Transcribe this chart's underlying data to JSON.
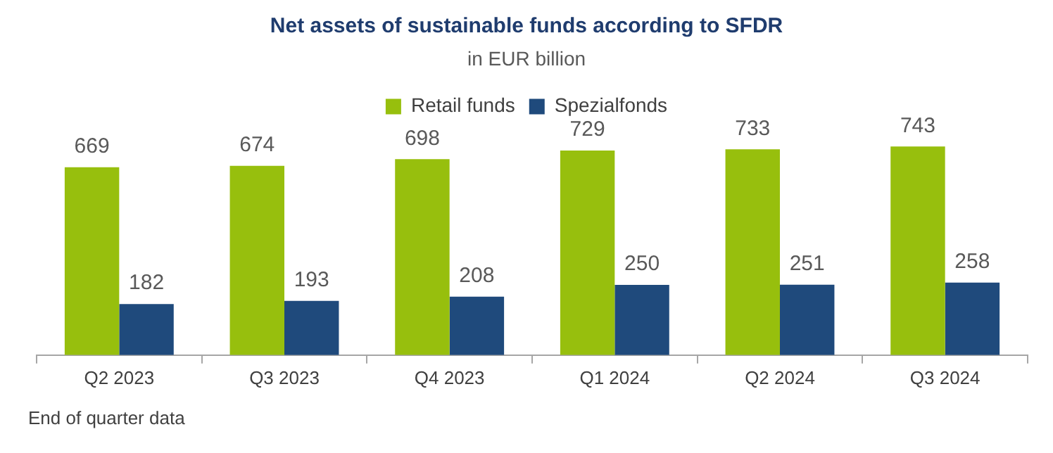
{
  "chart_data": {
    "type": "bar",
    "title": "Net assets of sustainable funds according to SFDR",
    "subtitle": "in EUR billion",
    "categories": [
      "Q2 2023",
      "Q3 2023",
      "Q4 2023",
      "Q1 2024",
      "Q2 2024",
      "Q3 2024"
    ],
    "series": [
      {
        "name": "Retail funds",
        "color": "#97bf0d",
        "values": [
          669,
          674,
          698,
          729,
          733,
          743
        ]
      },
      {
        "name": "Spezialfonds",
        "color": "#1f4a7c",
        "values": [
          182,
          193,
          208,
          250,
          251,
          258
        ]
      }
    ],
    "relative": false,
    "data_labels": true,
    "legend": "top",
    "grid": false,
    "annotations": [
      "End of quarter data"
    ]
  }
}
